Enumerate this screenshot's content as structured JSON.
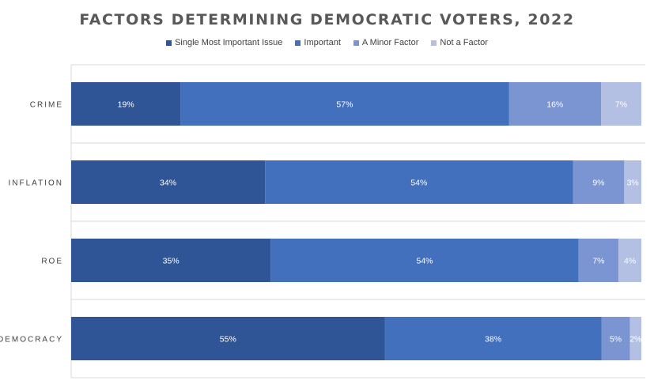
{
  "chart_data": {
    "type": "bar",
    "orientation": "horizontal",
    "stacked": true,
    "title": "FACTORS DETERMINING DEMOCRATIC VOTERS, 2022",
    "categories": [
      "CRIME",
      "INFLATION",
      "ROE",
      "DEMOCRACY"
    ],
    "series": [
      {
        "name": "Single Most Important Issue",
        "values": [
          19,
          34,
          35,
          55
        ],
        "labels": [
          "19%",
          "34%",
          "35%",
          "55%"
        ],
        "color": "#2f5597"
      },
      {
        "name": "Important",
        "values": [
          57,
          54,
          54,
          38
        ],
        "labels": [
          "57%",
          "54%",
          "54%",
          "38%"
        ],
        "color": "#4270bd"
      },
      {
        "name": "A Minor Factor",
        "values": [
          16,
          9,
          7,
          5
        ],
        "labels": [
          "16%",
          "9%",
          "7%",
          "5%"
        ],
        "color": "#7a95d1"
      },
      {
        "name": "Not a Factor",
        "values": [
          7,
          3,
          4,
          2
        ],
        "labels": [
          "7%",
          "3%",
          "4%",
          "2%"
        ],
        "color": "#b4c0e3"
      }
    ],
    "legend_position": "top",
    "grid": true,
    "colors": {
      "gridline": "#d9d9d9",
      "title": "#595959",
      "text": "#404040"
    }
  }
}
